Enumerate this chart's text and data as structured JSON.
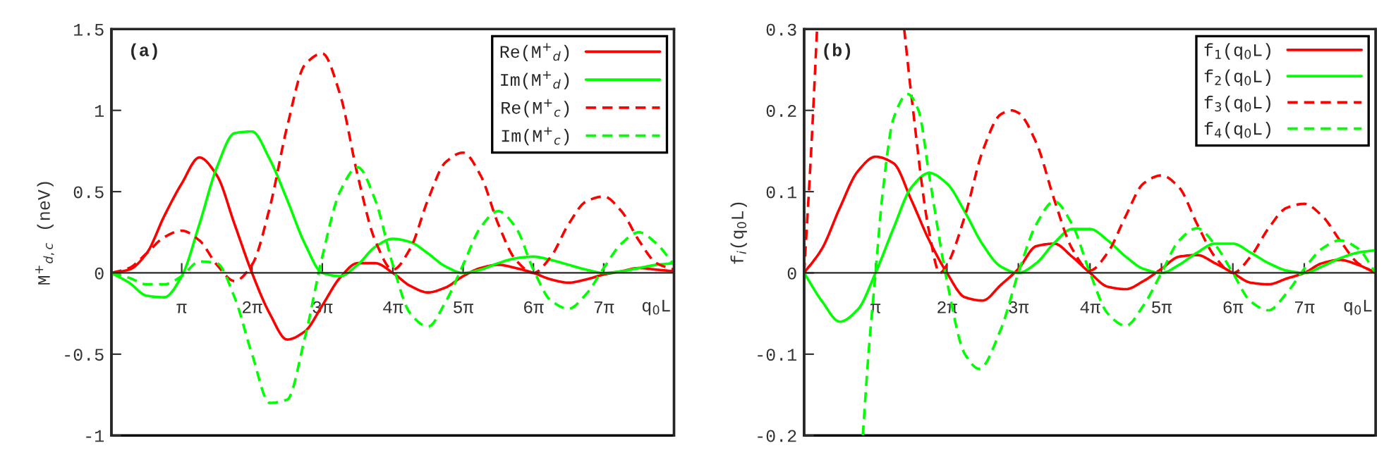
{
  "chart_data": [
    {
      "type": "line",
      "ylabel": "M$^{+}$$_{d,c}$ (neV)",
      "xlabel": "q$_{0}$L",
      "annotations": [
        "(a)"
      ],
      "legend": "top right",
      "xlim": [
        0,
        25.13
      ],
      "ylim": [
        -1,
        1.5
      ],
      "yticks": [
        -1,
        -0.5,
        0,
        0.5,
        1,
        1.5
      ],
      "xticks": [
        {
          "value": 3.14,
          "label": "π"
        },
        {
          "value": 6.28,
          "label": "2π"
        },
        {
          "value": 9.42,
          "label": "3π"
        },
        {
          "value": 12.57,
          "label": "4π"
        },
        {
          "value": 15.71,
          "label": "5π"
        },
        {
          "value": 18.85,
          "label": "6π"
        },
        {
          "value": 21.99,
          "label": "7π"
        }
      ],
      "x": [
        0,
        0.79,
        1.57,
        2.36,
        3.14,
        3.93,
        4.71,
        5.5,
        6.28,
        7.07,
        7.85,
        8.64,
        9.42,
        10.21,
        11.0,
        11.78,
        12.57,
        13.35,
        14.14,
        14.92,
        15.71,
        16.49,
        17.28,
        18.06,
        18.85,
        19.63,
        20.42,
        21.21,
        21.99,
        22.78,
        23.56,
        24.35,
        25.13
      ],
      "series": [
        {
          "name": "Re(M$^{+}$$_{d}$)",
          "color": "#ff0000",
          "line_style": "solid",
          "values": [
            0,
            0.02,
            0.12,
            0.35,
            0.55,
            0.71,
            0.6,
            0.3,
            0.0,
            -0.25,
            -0.41,
            -0.36,
            -0.2,
            -0.03,
            0.06,
            0.06,
            0.0,
            -0.08,
            -0.12,
            -0.09,
            -0.02,
            0.03,
            0.05,
            0.03,
            0.0,
            -0.04,
            -0.06,
            -0.04,
            -0.01,
            0.01,
            0.03,
            0.02,
            0.01
          ]
        },
        {
          "name": "Im(M$^{+}$$_{d}$)",
          "color": "#00ff00",
          "line_style": "solid",
          "values": [
            0,
            -0.06,
            -0.14,
            -0.15,
            -0.02,
            0.3,
            0.65,
            0.86,
            0.87,
            0.7,
            0.45,
            0.18,
            0.0,
            -0.02,
            0.05,
            0.16,
            0.21,
            0.19,
            0.12,
            0.04,
            0.0,
            0.02,
            0.06,
            0.09,
            0.1,
            0.08,
            0.05,
            0.02,
            0.0,
            0.01,
            0.03,
            0.05,
            0.06
          ]
        },
        {
          "name": "Re(M$^{+}$$_{c}$)",
          "color": "#ff0000",
          "line_style": "dashed",
          "values": [
            0,
            0.03,
            0.12,
            0.22,
            0.26,
            0.2,
            0.05,
            -0.05,
            0.05,
            0.4,
            0.9,
            1.28,
            1.35,
            1.1,
            0.6,
            0.2,
            0.02,
            0.15,
            0.45,
            0.68,
            0.74,
            0.6,
            0.3,
            0.08,
            0.0,
            0.1,
            0.3,
            0.44,
            0.47,
            0.38,
            0.2,
            0.06,
            0.02
          ]
        },
        {
          "name": "Im(M$^{+}$$_{c}$)",
          "color": "#00ff00",
          "line_style": "dashed",
          "values": [
            0,
            -0.03,
            -0.07,
            -0.07,
            -0.02,
            0.07,
            0.06,
            -0.15,
            -0.5,
            -0.8,
            -0.78,
            -0.4,
            0.1,
            0.5,
            0.65,
            0.45,
            0.05,
            -0.25,
            -0.33,
            -0.18,
            0.05,
            0.28,
            0.38,
            0.28,
            0.02,
            -0.17,
            -0.22,
            -0.13,
            0.03,
            0.18,
            0.25,
            0.18,
            0.05
          ]
        }
      ]
    },
    {
      "type": "line",
      "ylabel": "f$_{i}$(q$_{0}$L)",
      "xlabel": "q$_{0}$L",
      "annotations": [
        "(b)"
      ],
      "legend": "top right",
      "xlim": [
        0,
        25.13
      ],
      "ylim": [
        -0.2,
        0.3
      ],
      "yticks": [
        -0.2,
        -0.1,
        0,
        0.1,
        0.2,
        0.3
      ],
      "xticks": [
        {
          "value": 3.14,
          "label": "π"
        },
        {
          "value": 6.28,
          "label": "2π"
        },
        {
          "value": 9.42,
          "label": "3π"
        },
        {
          "value": 12.57,
          "label": "4π"
        },
        {
          "value": 15.71,
          "label": "5π"
        },
        {
          "value": 18.85,
          "label": "6π"
        },
        {
          "value": 21.99,
          "label": "7π"
        }
      ],
      "x": [
        0,
        0.79,
        1.57,
        2.36,
        3.14,
        3.93,
        4.71,
        5.5,
        6.28,
        7.07,
        7.85,
        8.64,
        9.42,
        10.21,
        11.0,
        11.78,
        12.57,
        13.35,
        14.14,
        14.92,
        15.71,
        16.49,
        17.28,
        18.06,
        18.85,
        19.63,
        20.42,
        21.21,
        21.99,
        22.78,
        23.56,
        24.35,
        25.13
      ],
      "series": [
        {
          "name": "f$_{1}$(q$_{0}$L)",
          "color": "#ff0000",
          "line_style": "solid",
          "values": [
            0,
            0.03,
            0.08,
            0.125,
            0.143,
            0.135,
            0.09,
            0.04,
            0.0,
            -0.03,
            -0.034,
            -0.015,
            0.005,
            0.033,
            0.036,
            0.02,
            0.0,
            -0.017,
            -0.02,
            -0.01,
            0.005,
            0.02,
            0.022,
            0.012,
            0.0,
            -0.012,
            -0.014,
            -0.007,
            0.0,
            0.012,
            0.016,
            0.01,
            0.0
          ]
        },
        {
          "name": "f$_{2}$(q$_{0}$L)",
          "color": "#00ff00",
          "line_style": "solid",
          "values": [
            0,
            -0.035,
            -0.06,
            -0.045,
            0.0,
            0.055,
            0.105,
            0.123,
            0.11,
            0.075,
            0.035,
            0.008,
            0.0,
            0.012,
            0.037,
            0.054,
            0.054,
            0.04,
            0.02,
            0.005,
            0.0,
            0.01,
            0.025,
            0.036,
            0.036,
            0.025,
            0.012,
            0.003,
            0.0,
            0.008,
            0.018,
            0.025,
            0.028
          ]
        },
        {
          "name": "f$_{3}$(q$_{0}$L)",
          "color": "#ff0000",
          "line_style": "dashed",
          "x": [
            0,
            0.31,
            0.57,
            2.51,
            4.4,
            4.71,
            5.5,
            5.97,
            6.28,
            7.07,
            7.85,
            8.64,
            9.11,
            9.42,
            10.21,
            11.0,
            11.78,
            12.57,
            13.35,
            14.14,
            14.92,
            15.71,
            16.49,
            17.28,
            18.06,
            18.85,
            19.63,
            20.42,
            21.21,
            21.99,
            22.78,
            23.56,
            24.35,
            25.13
          ],
          "values": [
            0,
            0.15,
            0.3,
            null,
            0.3,
            0.22,
            0.05,
            0.0,
            0.01,
            0.07,
            0.15,
            0.195,
            0.2,
            0.197,
            0.16,
            0.09,
            0.03,
            0.003,
            0.025,
            0.07,
            0.11,
            0.12,
            0.105,
            0.06,
            0.02,
            0.0,
            0.02,
            0.055,
            0.08,
            0.085,
            0.07,
            0.04,
            0.012,
            0.0
          ]
        },
        {
          "name": "f$_{4}$(q$_{0}$L)",
          "color": "#00ff00",
          "line_style": "dashed",
          "x": [
            2.58,
            2.83,
            3.14,
            3.46,
            3.93,
            4.56,
            5.03,
            5.5,
            6.28,
            7.07,
            7.7,
            8.64,
            9.42,
            10.21,
            11.0,
            11.78,
            12.57,
            13.35,
            14.14,
            14.92,
            15.71,
            16.49,
            17.28,
            18.06,
            18.85,
            19.63,
            20.42,
            21.21,
            21.99,
            22.78,
            23.56,
            24.35,
            25.13
          ],
          "values": [
            -0.2,
            -0.1,
            0.0,
            0.1,
            0.19,
            0.22,
            0.2,
            0.12,
            -0.01,
            -0.1,
            -0.118,
            -0.07,
            0.0,
            0.06,
            0.088,
            0.06,
            0.0,
            -0.05,
            -0.065,
            -0.04,
            0.0,
            0.04,
            0.055,
            0.035,
            0.0,
            -0.035,
            -0.046,
            -0.025,
            0.005,
            0.03,
            0.04,
            0.03,
            0.0
          ]
        }
      ]
    }
  ]
}
